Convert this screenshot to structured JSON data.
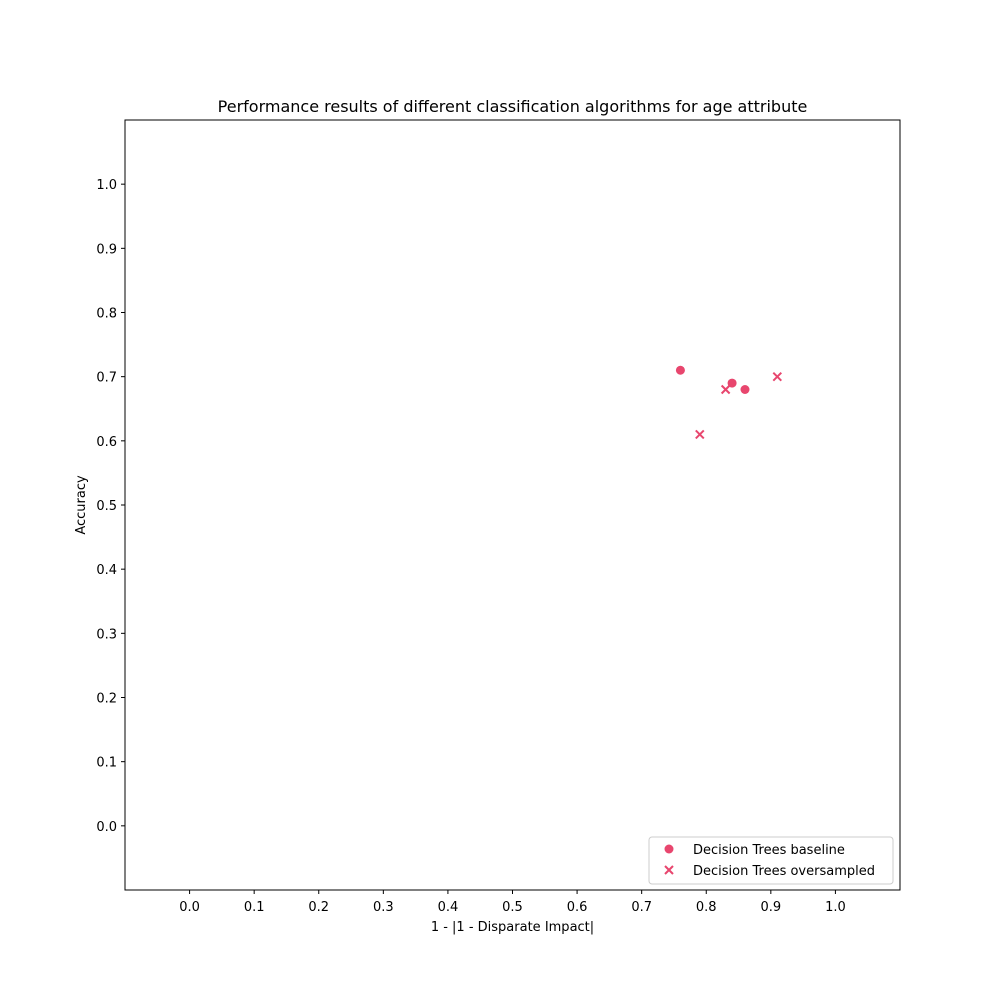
{
  "chart_data": {
    "type": "scatter",
    "title": "Performance results of different classification algorithms for age attribute",
    "xlabel": "1 - |1 - Disparate Impact|",
    "ylabel": "Accuracy",
    "xlim": [
      -0.1,
      1.1
    ],
    "ylim": [
      -0.1,
      1.1
    ],
    "xticks": [
      0.0,
      0.1,
      0.2,
      0.3,
      0.4,
      0.5,
      0.6,
      0.7,
      0.8,
      0.9,
      1.0
    ],
    "yticks": [
      0.0,
      0.1,
      0.2,
      0.3,
      0.4,
      0.5,
      0.6,
      0.7,
      0.8,
      0.9,
      1.0
    ],
    "xtick_labels": [
      "0.0",
      "0.1",
      "0.2",
      "0.3",
      "0.4",
      "0.5",
      "0.6",
      "0.7",
      "0.8",
      "0.9",
      "1.0"
    ],
    "ytick_labels": [
      "0.0",
      "0.1",
      "0.2",
      "0.3",
      "0.4",
      "0.5",
      "0.6",
      "0.7",
      "0.8",
      "0.9",
      "1.0"
    ],
    "grid": false,
    "legend_position": "lower-right",
    "series": [
      {
        "name": "Decision Trees baseline",
        "marker": "circle",
        "color": "#e8466e",
        "points": [
          {
            "x": 0.76,
            "y": 0.71
          },
          {
            "x": 0.84,
            "y": 0.69
          },
          {
            "x": 0.86,
            "y": 0.68
          }
        ]
      },
      {
        "name": "Decision Trees oversampled",
        "marker": "x",
        "color": "#e8466e",
        "points": [
          {
            "x": 0.79,
            "y": 0.61
          },
          {
            "x": 0.83,
            "y": 0.68
          },
          {
            "x": 0.91,
            "y": 0.7
          }
        ]
      }
    ]
  }
}
